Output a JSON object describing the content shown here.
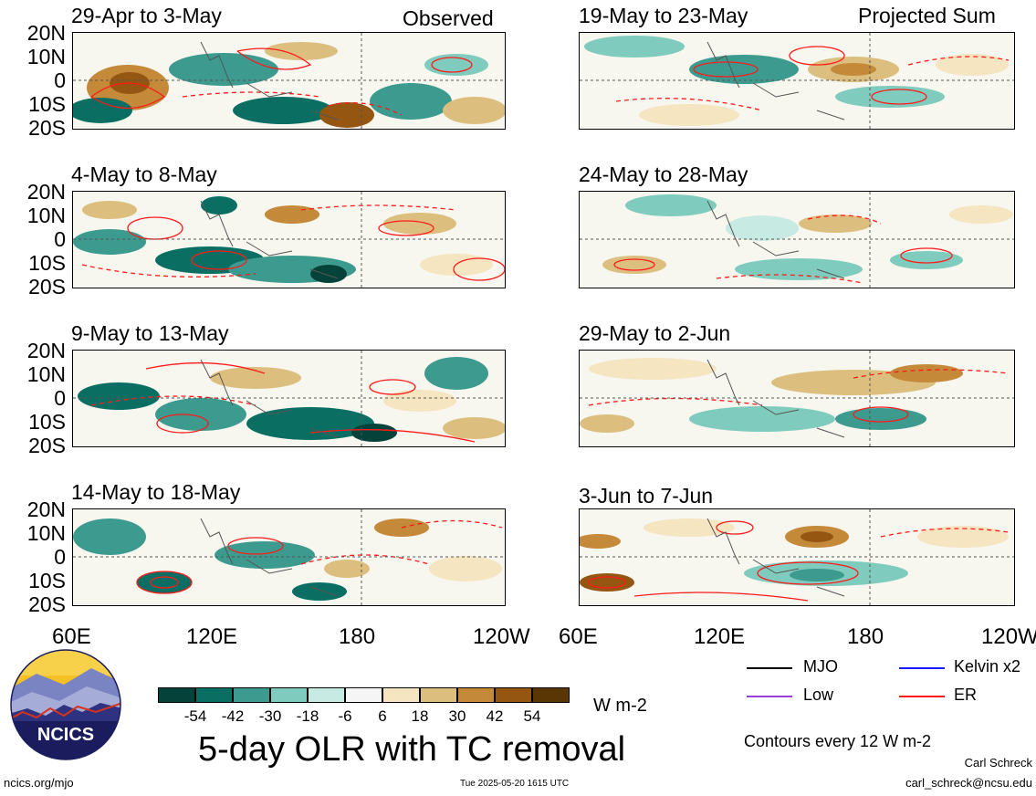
{
  "panels": {
    "p1": {
      "date": "29-Apr to 3-May",
      "tag": "Observed"
    },
    "p2": {
      "date": "4-May to 8-May"
    },
    "p3": {
      "date": "9-May to 13-May"
    },
    "p4": {
      "date": "14-May to 18-May"
    },
    "p5": {
      "date": "19-May to 23-May",
      "tag": "Projected Sum"
    },
    "p6": {
      "date": "24-May to 28-May"
    },
    "p7": {
      "date": "29-May to 2-Jun"
    },
    "p8": {
      "date": "3-Jun to 7-Jun"
    }
  },
  "lat_labels": [
    "20N",
    "10N",
    "0",
    "10S",
    "20S"
  ],
  "lon_labels": [
    "60E",
    "120E",
    "180",
    "120W"
  ],
  "colorbar": {
    "colors": [
      "#05433a",
      "#0a6e63",
      "#3c9a8e",
      "#7fcbbd",
      "#c7eae2",
      "#f5f5f5",
      "#f5e5c0",
      "#dcbf7e",
      "#c48a3a",
      "#955612",
      "#5a3605"
    ],
    "ticks": [
      "-54",
      "-42",
      "-30",
      "-18",
      "-6",
      "6",
      "18",
      "30",
      "42",
      "54"
    ],
    "units": "W m-2"
  },
  "legend": {
    "mjo": "MJO",
    "kelvin": "Kelvin x2",
    "low": "Low",
    "er": "ER",
    "colors": {
      "mjo": "#000000",
      "kelvin": "#1a1aff",
      "low": "#9b3fd6",
      "er": "#ff1a1a"
    }
  },
  "contour_note": "Contours every 12 W m-2",
  "main_title": "5-day OLR with TC removal",
  "logo_text": "NCICS",
  "footer": {
    "left": "ncics.org/mjo",
    "center": "Tue 2025-05-20 1615 UTC",
    "author": "Carl Schreck",
    "email": "carl_schreck@ncsu.edu"
  }
}
